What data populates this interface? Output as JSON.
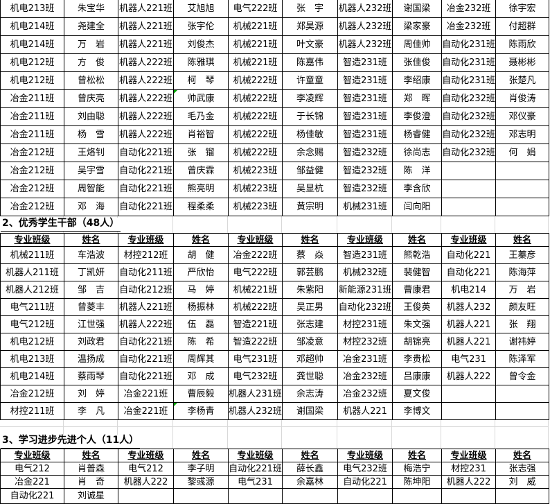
{
  "meta": {
    "app": "spreadsheet-award-list",
    "border_color": "#000000",
    "gridline_color": "#d8d8d8",
    "error_indicator_color": "#00a000",
    "text_color": "#000000"
  },
  "section1": {
    "rows": [
      [
        "机电213班",
        "朱宝华",
        "机器人221班",
        "艾旭旭",
        "电气222班",
        "张　宇",
        "机器人232班",
        "谢国梁",
        "冶金232班",
        "徐宇宏"
      ],
      [
        "机电214班",
        "尧建全",
        "机器人221班",
        "张宇伦",
        "机械221班",
        "郑昊源",
        "机器人232班",
        "梁家豪",
        "冶金232班",
        "付超群"
      ],
      [
        "机电214班",
        "万　岩",
        "机器人221班",
        "刘俊杰",
        "机械221班",
        "叶文豪",
        "机器人232班",
        "周佳帅",
        "自动化231班",
        "陈雨欣"
      ],
      [
        "机电212班",
        "方　俊",
        "机器人222班",
        "陈雅琪",
        "机械221班",
        "陈嘉伟",
        "智造231班",
        "张佳俊",
        "自动化231班",
        "聂彬彬"
      ],
      [
        "机电212班",
        "曾松松",
        "机器人222班",
        "柯　琴",
        "机械222班",
        "许童童",
        "智造231班",
        "李绍康",
        "自动化231班",
        "张楚凡"
      ],
      [
        "冶金211班",
        "曾庆亮",
        "机器人222班",
        "帅武康",
        "机械222班",
        "李凌辉",
        "智造231班",
        "郑　晖",
        "自动化232班",
        "肖俊涛"
      ],
      [
        "冶金211班",
        "刘由聪",
        "机器人222班",
        "毛乃金",
        "机械222班",
        "于长锦",
        "智造231班",
        "李俊澄",
        "自动化232班",
        "邓仪豪"
      ],
      [
        "冶金211班",
        "杨　雪",
        "机器人222班",
        "肖裕智",
        "机械222班",
        "杨佳敏",
        "智造231班",
        "杨睿健",
        "自动化232班",
        "邓志明"
      ],
      [
        "冶金212班",
        "王烙钊",
        "自动化221班",
        "张　镏",
        "机械222班",
        "余念赐",
        "智造232班",
        "徐尚志",
        "自动化232班",
        "何　娟"
      ],
      [
        "冶金212班",
        "吴宇雪",
        "自动化221班",
        "曾庆霖",
        "机械223班",
        "邹益健",
        "智造232班",
        "陈　洋",
        "",
        ""
      ],
      [
        "冶金212班",
        "周智能",
        "自动化221班",
        "熊亮明",
        "机械223班",
        "吴显杭",
        "智造232班",
        "李含欣",
        "",
        ""
      ],
      [
        "冶金212班",
        "邓　海",
        "自动化221班",
        "程柔柔",
        "机械223班",
        "黄宗明",
        "机械231班",
        "闫向阳",
        "",
        ""
      ]
    ],
    "flags": [
      {
        "row": 5,
        "col": 3
      }
    ]
  },
  "section2": {
    "title": "2、优秀学生干部（48人）",
    "header": [
      "专业班级",
      "姓名",
      "专业班级",
      "姓名",
      "专业班级",
      "姓名",
      "专业班级",
      "姓名",
      "专业班级",
      "姓名"
    ],
    "rows": [
      [
        "机械211班",
        "车浩波",
        "材控212班",
        "胡　健",
        "冶金222班",
        "蔡　焱",
        "智造231班",
        "熊乾浩",
        "自动化221",
        "王蓁彦"
      ],
      [
        "机器人211班",
        "丁凯妍",
        "自动化211班",
        "严欣怡",
        "电气222班",
        "郭芸鹏",
        "机械232班",
        "裴健智",
        "自动化221",
        "陈海萍"
      ],
      [
        "机器人212班",
        "邹　吉",
        "自动化212班",
        "马　婷",
        "机械221班",
        "朱紫阳",
        "新能源231班",
        "曹康君",
        "机电214",
        "万　岩"
      ],
      [
        "电气211班",
        "曾菱丰",
        "机器人221班",
        "杨振林",
        "机械222班",
        "吴正男",
        "自动化232班",
        "王俊英",
        "机器人232",
        "颜友旺"
      ],
      [
        "电气212班",
        "江世强",
        "机器人222班",
        "伍　磊",
        "智造221班",
        "张志建",
        "材控231班",
        "朱文强",
        "机器人221",
        "张　翔"
      ],
      [
        "机电212班",
        "刘政君",
        "自动化221班",
        "陈　希",
        "智造222班",
        "邹凌意",
        "材控232班",
        "胡锦亮",
        "机器人221",
        "谢祎婷"
      ],
      [
        "机电213班",
        "温扬成",
        "自动化221班",
        "周辉其",
        "电气231班",
        "邓超帅",
        "冶金231班",
        "李贵松",
        "电气231",
        "陈泽军"
      ],
      [
        "机电214班",
        "蔡雨琴",
        "自动化221班",
        "邓　成",
        "电气232班",
        "龚世聪",
        "冶金232班",
        "吕康康",
        "机器人222",
        "曾令金"
      ],
      [
        "冶金212班",
        "刘　婷",
        "冶金221班",
        "曹辰毅",
        "机器人231班",
        "余志涛",
        "冶金232班",
        "夏文俊",
        "",
        ""
      ],
      [
        "材控211班",
        "李　凡",
        "冶金221班",
        "李杨青",
        "机器人232班",
        "谢国梁",
        "机器人221",
        "李博文",
        "",
        ""
      ]
    ],
    "flags": [
      {
        "row": 9,
        "col": 3
      }
    ]
  },
  "section3": {
    "title": "3、学习进步先进个人（11人）",
    "header": [
      "专业班级",
      "姓名",
      "专业班级",
      "姓名",
      "专业班级",
      "姓名",
      "专业班级",
      "姓名",
      "专业班级",
      "姓名"
    ],
    "rows": [
      [
        "电气212",
        "肖普森",
        "电气212",
        "李子明",
        "自动化221班",
        "薛长鑫",
        "电气232班",
        "梅浩宁",
        "材控231",
        "张志强"
      ],
      [
        "冶金221",
        "肖　奇",
        "机器人222",
        "黎彧源",
        "电气231",
        "余嘉林",
        "自动化221",
        "陈坤阳",
        "机器人222",
        "刘　威"
      ],
      [
        "自动化221",
        "刘诚星",
        "",
        "",
        "",
        "",
        "",
        "",
        "",
        ""
      ]
    ],
    "flags": []
  }
}
